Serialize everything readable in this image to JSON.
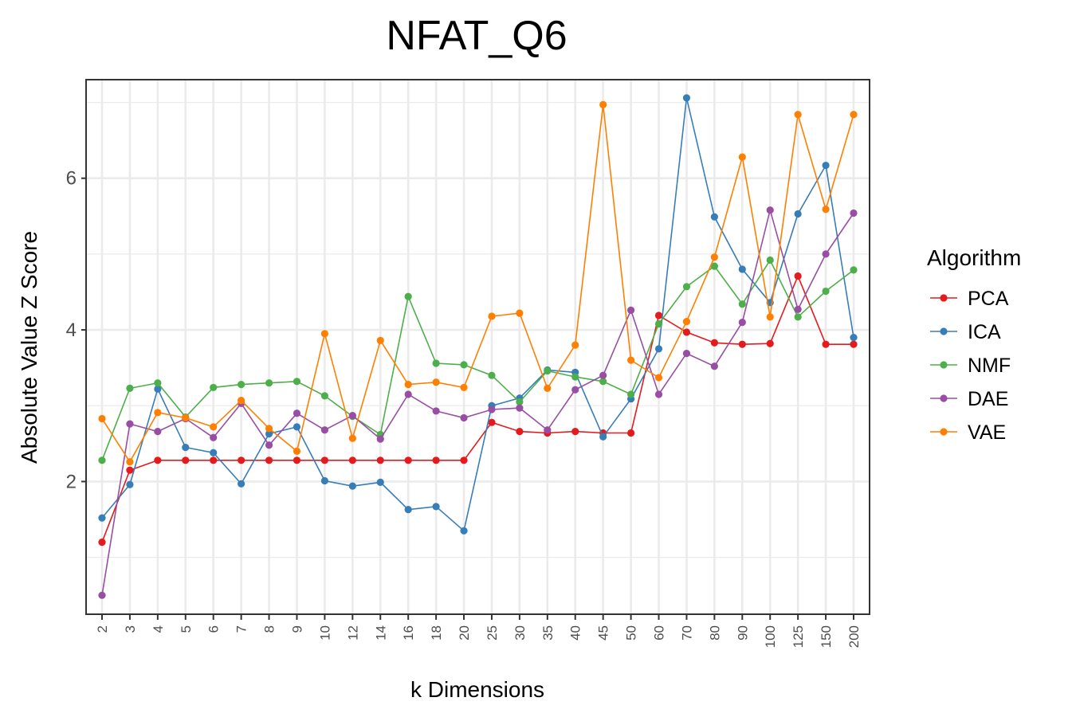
{
  "chart_data": {
    "type": "line",
    "title": "NFAT_Q6",
    "xlabel": "k Dimensions",
    "ylabel": "Absolute Value Z Score",
    "categories": [
      "2",
      "3",
      "4",
      "5",
      "6",
      "7",
      "8",
      "9",
      "10",
      "12",
      "14",
      "16",
      "18",
      "20",
      "25",
      "30",
      "35",
      "40",
      "45",
      "50",
      "60",
      "70",
      "80",
      "90",
      "100",
      "125",
      "150",
      "200"
    ],
    "ylim": [
      0.25,
      7.3
    ],
    "yticks": [
      "2",
      "4",
      "6"
    ],
    "grid": true,
    "legend": {
      "title": "Algorithm",
      "position": "right"
    },
    "series": [
      {
        "name": "PCA",
        "color": "#E41A1C",
        "values": [
          1.2,
          2.15,
          2.28,
          2.28,
          2.28,
          2.28,
          2.28,
          2.28,
          2.28,
          2.28,
          2.28,
          2.28,
          2.28,
          2.28,
          2.78,
          2.66,
          2.64,
          2.66,
          2.64,
          2.64,
          4.19,
          3.97,
          3.83,
          3.81,
          3.82,
          4.71,
          3.81,
          3.81
        ]
      },
      {
        "name": "ICA",
        "color": "#377EB8",
        "values": [
          1.52,
          1.96,
          3.22,
          2.45,
          2.38,
          1.97,
          2.63,
          2.72,
          2.01,
          1.94,
          1.99,
          1.63,
          1.67,
          1.35,
          3.0,
          3.1,
          3.47,
          3.44,
          2.59,
          3.09,
          3.75,
          7.06,
          5.49,
          4.8,
          4.36,
          5.53,
          6.17,
          3.9
        ]
      },
      {
        "name": "NMF",
        "color": "#4DAF4A",
        "values": [
          2.28,
          3.23,
          3.3,
          2.85,
          3.24,
          3.28,
          3.3,
          3.32,
          3.13,
          2.86,
          2.62,
          4.44,
          3.56,
          3.54,
          3.4,
          3.05,
          3.46,
          3.38,
          3.32,
          3.15,
          4.08,
          4.57,
          4.84,
          4.34,
          4.92,
          4.17,
          4.51,
          4.79
        ]
      },
      {
        "name": "DAE",
        "color": "#984EA3",
        "values": [
          0.5,
          2.76,
          2.66,
          2.83,
          2.58,
          3.03,
          2.48,
          2.9,
          2.68,
          2.87,
          2.56,
          3.15,
          2.93,
          2.84,
          2.95,
          2.97,
          2.68,
          3.21,
          3.4,
          4.26,
          3.15,
          3.69,
          3.52,
          4.1,
          5.58,
          4.27,
          5.0,
          5.54
        ]
      },
      {
        "name": "VAE",
        "color": "#FF7F00",
        "values": [
          2.83,
          2.26,
          2.91,
          2.84,
          2.72,
          3.07,
          2.7,
          2.4,
          3.95,
          2.57,
          3.86,
          3.28,
          3.31,
          3.24,
          4.18,
          4.22,
          3.23,
          3.8,
          6.97,
          3.6,
          3.37,
          4.11,
          4.96,
          6.28,
          4.17,
          6.84,
          5.59,
          6.84
        ]
      }
    ]
  }
}
